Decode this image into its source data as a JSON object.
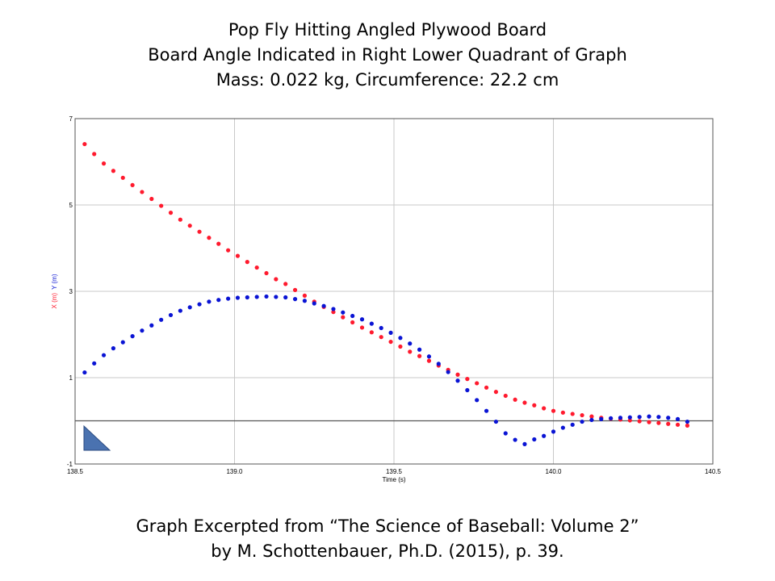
{
  "title_lines": [
    "Pop Fly Hitting Angled Plywood Board",
    "Board Angle Indicated in Right Lower Quadrant of Graph",
    "Mass: 0.022 kg, Circumference:  22.2 cm"
  ],
  "footer_lines": [
    "Graph Excerpted from “The Science of Baseball: Volume 2”",
    "by M. Schottenbauer, Ph.D. (2015), p. 39."
  ],
  "colors": {
    "x_series": "#ff1a2e",
    "y_series": "#0a14d4",
    "grid": "#c8c8c8",
    "board_fill": "#4a72b0",
    "board_stroke": "#2a4a80"
  },
  "chart_data": {
    "type": "scatter",
    "xlabel": "Time (s)",
    "ylabel_parts": [
      "X (m)",
      "Y (m)"
    ],
    "xlim": [
      138.5,
      140.5
    ],
    "ylim": [
      -1,
      7
    ],
    "xticks": [
      "138.5",
      "139.0",
      "139.5",
      "140.0",
      "140.5"
    ],
    "yticks": [
      "7",
      "5",
      "3",
      "1",
      "-1"
    ],
    "grid": true,
    "zero_line": true,
    "board_marker": "right-triangle, lower-left corner of plot",
    "series": [
      {
        "label": "X (m)",
        "color": "#ff1a2e",
        "points": [
          [
            138.53,
            6.41
          ],
          [
            138.56,
            6.18
          ],
          [
            138.59,
            5.96
          ],
          [
            138.62,
            5.79
          ],
          [
            138.65,
            5.63
          ],
          [
            138.68,
            5.46
          ],
          [
            138.71,
            5.3
          ],
          [
            138.74,
            5.14
          ],
          [
            138.77,
            4.98
          ],
          [
            138.8,
            4.82
          ],
          [
            138.83,
            4.66
          ],
          [
            138.86,
            4.52
          ],
          [
            138.89,
            4.38
          ],
          [
            138.92,
            4.24
          ],
          [
            138.95,
            4.1
          ],
          [
            138.98,
            3.95
          ],
          [
            139.01,
            3.82
          ],
          [
            139.04,
            3.68
          ],
          [
            139.07,
            3.55
          ],
          [
            139.1,
            3.42
          ],
          [
            139.13,
            3.28
          ],
          [
            139.16,
            3.17
          ],
          [
            139.19,
            3.03
          ],
          [
            139.22,
            2.9
          ],
          [
            139.25,
            2.76
          ],
          [
            139.28,
            2.64
          ],
          [
            139.31,
            2.52
          ],
          [
            139.34,
            2.4
          ],
          [
            139.37,
            2.28
          ],
          [
            139.4,
            2.16
          ],
          [
            139.43,
            2.05
          ],
          [
            139.46,
            1.94
          ],
          [
            139.49,
            1.83
          ],
          [
            139.52,
            1.72
          ],
          [
            139.55,
            1.6
          ],
          [
            139.58,
            1.5
          ],
          [
            139.61,
            1.39
          ],
          [
            139.64,
            1.28
          ],
          [
            139.67,
            1.18
          ],
          [
            139.7,
            1.07
          ],
          [
            139.73,
            0.97
          ],
          [
            139.76,
            0.87
          ],
          [
            139.79,
            0.77
          ],
          [
            139.82,
            0.67
          ],
          [
            139.85,
            0.58
          ],
          [
            139.88,
            0.49
          ],
          [
            139.91,
            0.42
          ],
          [
            139.94,
            0.36
          ],
          [
            139.97,
            0.29
          ],
          [
            140.0,
            0.23
          ],
          [
            140.03,
            0.19
          ],
          [
            140.06,
            0.16
          ],
          [
            140.09,
            0.13
          ],
          [
            140.12,
            0.1
          ],
          [
            140.15,
            0.07
          ],
          [
            140.18,
            0.05
          ],
          [
            140.21,
            0.03
          ],
          [
            140.24,
            0.01
          ],
          [
            140.27,
            -0.01
          ],
          [
            140.3,
            -0.03
          ],
          [
            140.33,
            -0.05
          ],
          [
            140.36,
            -0.07
          ],
          [
            140.39,
            -0.09
          ],
          [
            140.42,
            -0.11
          ]
        ]
      },
      {
        "label": "Y (m)",
        "color": "#0a14d4",
        "points": [
          [
            138.53,
            1.12
          ],
          [
            138.56,
            1.33
          ],
          [
            138.59,
            1.52
          ],
          [
            138.62,
            1.68
          ],
          [
            138.65,
            1.82
          ],
          [
            138.68,
            1.96
          ],
          [
            138.71,
            2.09
          ],
          [
            138.74,
            2.21
          ],
          [
            138.77,
            2.34
          ],
          [
            138.8,
            2.45
          ],
          [
            138.83,
            2.55
          ],
          [
            138.86,
            2.63
          ],
          [
            138.89,
            2.7
          ],
          [
            138.92,
            2.76
          ],
          [
            138.95,
            2.8
          ],
          [
            138.98,
            2.83
          ],
          [
            139.01,
            2.85
          ],
          [
            139.04,
            2.86
          ],
          [
            139.07,
            2.87
          ],
          [
            139.1,
            2.88
          ],
          [
            139.13,
            2.87
          ],
          [
            139.16,
            2.86
          ],
          [
            139.19,
            2.82
          ],
          [
            139.22,
            2.78
          ],
          [
            139.25,
            2.72
          ],
          [
            139.28,
            2.66
          ],
          [
            139.31,
            2.59
          ],
          [
            139.34,
            2.51
          ],
          [
            139.37,
            2.43
          ],
          [
            139.4,
            2.35
          ],
          [
            139.43,
            2.25
          ],
          [
            139.46,
            2.15
          ],
          [
            139.49,
            2.04
          ],
          [
            139.52,
            1.92
          ],
          [
            139.55,
            1.79
          ],
          [
            139.58,
            1.65
          ],
          [
            139.61,
            1.49
          ],
          [
            139.64,
            1.32
          ],
          [
            139.67,
            1.13
          ],
          [
            139.7,
            0.93
          ],
          [
            139.73,
            0.71
          ],
          [
            139.76,
            0.48
          ],
          [
            139.79,
            0.23
          ],
          [
            139.82,
            -0.02
          ],
          [
            139.85,
            -0.29
          ],
          [
            139.88,
            -0.44
          ],
          [
            139.91,
            -0.54
          ],
          [
            139.94,
            -0.43
          ],
          [
            139.97,
            -0.35
          ],
          [
            140.0,
            -0.25
          ],
          [
            140.03,
            -0.16
          ],
          [
            140.06,
            -0.09
          ],
          [
            140.09,
            -0.02
          ],
          [
            140.12,
            0.02
          ],
          [
            140.15,
            0.04
          ],
          [
            140.18,
            0.06
          ],
          [
            140.21,
            0.07
          ],
          [
            140.24,
            0.08
          ],
          [
            140.27,
            0.09
          ],
          [
            140.3,
            0.1
          ],
          [
            140.33,
            0.09
          ],
          [
            140.36,
            0.07
          ],
          [
            140.39,
            0.04
          ],
          [
            140.42,
            -0.02
          ]
        ]
      }
    ]
  }
}
